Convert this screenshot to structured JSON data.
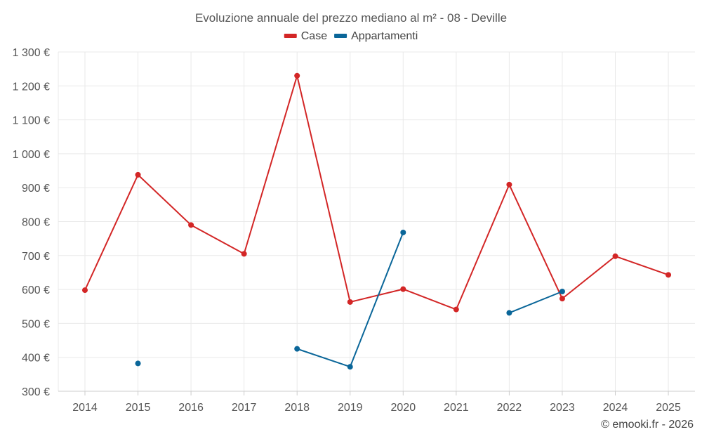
{
  "chart_data": {
    "type": "line",
    "title": "Evoluzione annuale del prezzo mediano al m² - 08 - Deville",
    "xlabel": "",
    "ylabel": "",
    "categories": [
      "2014",
      "2015",
      "2016",
      "2017",
      "2018",
      "2019",
      "2020",
      "2021",
      "2022",
      "2023",
      "2024",
      "2025"
    ],
    "ylim": [
      300,
      1300
    ],
    "yticks": [
      300,
      400,
      500,
      600,
      700,
      800,
      900,
      1000,
      1100,
      1200,
      1300
    ],
    "ytick_labels": [
      "300 €",
      "400 €",
      "500 €",
      "600 €",
      "700 €",
      "800 €",
      "900 €",
      "1 000 €",
      "1 100 €",
      "1 200 €",
      "1 300 €"
    ],
    "legend_position": "top-center",
    "grid": true,
    "series": [
      {
        "name": "Case",
        "color": "#d32626",
        "values": [
          598,
          938,
          790,
          705,
          1230,
          563,
          601,
          541,
          909,
          573,
          698,
          643
        ]
      },
      {
        "name": "Appartamenti",
        "color": "#0a6699",
        "values": [
          null,
          382,
          null,
          null,
          425,
          372,
          768,
          null,
          531,
          594,
          null,
          null
        ]
      }
    ]
  },
  "credit": "© emooki.fr - 2026"
}
